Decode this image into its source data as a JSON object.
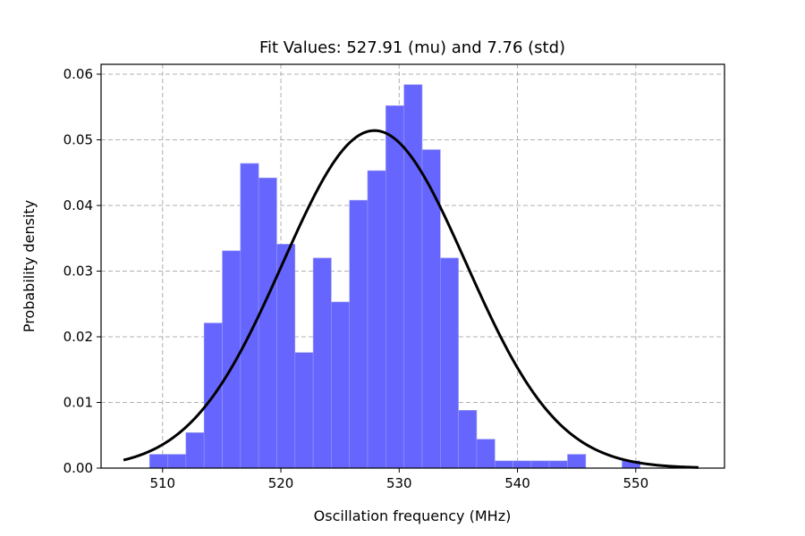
{
  "chart_data": {
    "type": "bar",
    "title": "Fit Values: 527.91 (mu) and 7.76 (std)",
    "xlabel": "Oscillation frequency (MHz)",
    "ylabel": "Probability density",
    "xlim": [
      504.8,
      557.5
    ],
    "ylim": [
      0,
      0.0615
    ],
    "xticks": [
      510,
      520,
      530,
      540,
      550
    ],
    "yticks": [
      0.0,
      0.01,
      0.02,
      0.03,
      0.04,
      0.05,
      0.06
    ],
    "xtick_labels": [
      "510",
      "520",
      "530",
      "540",
      "550"
    ],
    "ytick_labels": [
      "0.00",
      "0.01",
      "0.02",
      "0.03",
      "0.04",
      "0.05",
      "0.06"
    ],
    "grid": true,
    "histogram": {
      "bin_edges": [
        508.9,
        510.44,
        511.97,
        513.51,
        515.05,
        516.58,
        518.12,
        519.65,
        521.19,
        522.73,
        524.26,
        525.8,
        527.33,
        528.87,
        530.41,
        531.94,
        533.48,
        535.01,
        536.55,
        538.09,
        539.62,
        541.16,
        542.69,
        544.23,
        545.77,
        547.3,
        548.84,
        550.37,
        551.91,
        553.45
      ],
      "densities": [
        0.0021,
        0.0021,
        0.0054,
        0.0221,
        0.0331,
        0.0464,
        0.0442,
        0.0341,
        0.0176,
        0.032,
        0.0253,
        0.0408,
        0.0453,
        0.0552,
        0.0584,
        0.0485,
        0.032,
        0.0088,
        0.0044,
        0.0011,
        0.0011,
        0.0011,
        0.0011,
        0.0021,
        0.0,
        0.0,
        0.0011,
        0.0,
        0.0
      ],
      "color": "#6666ff"
    },
    "fit_curve": {
      "type": "normal_pdf",
      "mu": 527.91,
      "std": 7.76,
      "x_range": [
        506.7,
        555.3
      ],
      "color": "#000000"
    }
  }
}
